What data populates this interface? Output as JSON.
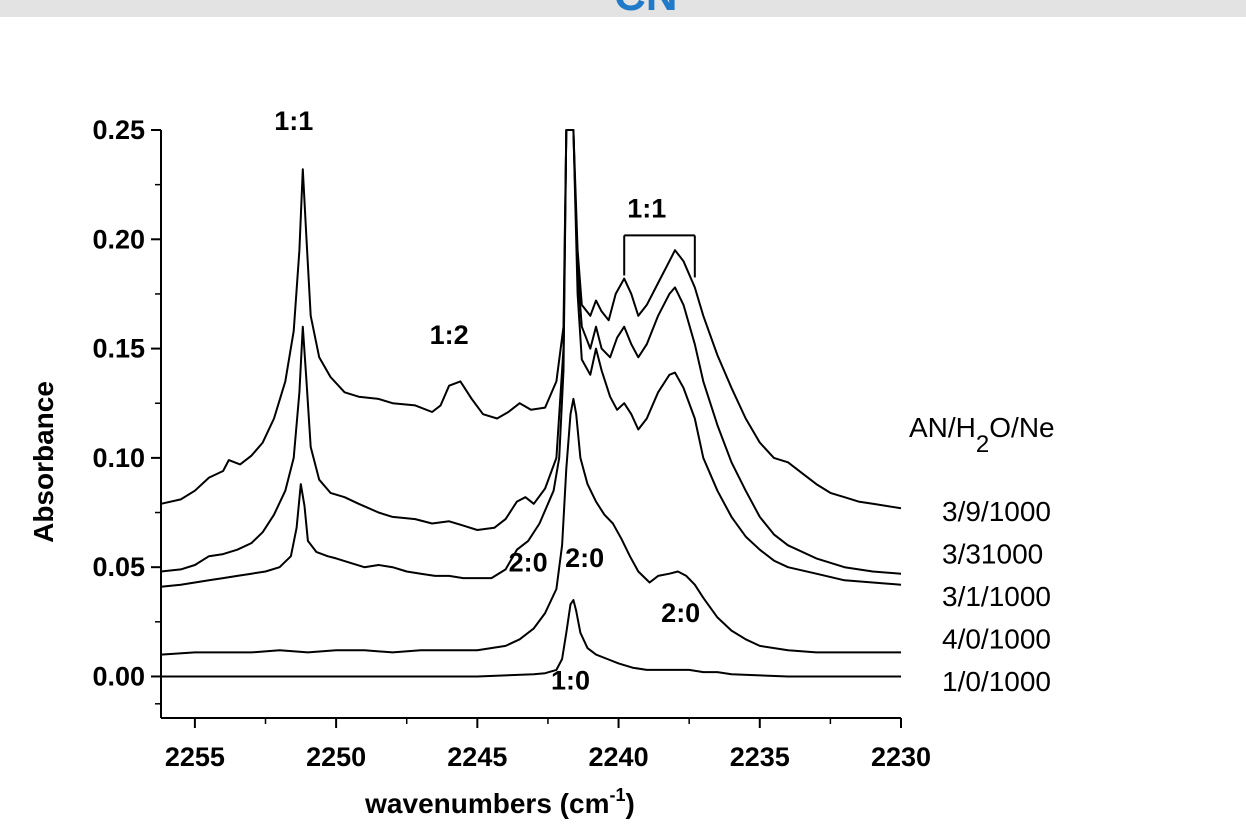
{
  "header": {
    "title_fragment": "CN",
    "band_color": "#e3e3e3",
    "title_color": "#1f7ac9"
  },
  "chart_data": {
    "type": "line",
    "title": "",
    "xlabel": "wavenumbers (cm",
    "xlabel_superscript": "-1",
    "xlabel_suffix": ")",
    "ylabel": "Absorbance",
    "xlim": [
      2256.2,
      2230
    ],
    "ylim": [
      -0.019,
      0.25
    ],
    "x_reversed": true,
    "grid": false,
    "line_color": "#000000",
    "xticks": [
      2255,
      2250,
      2245,
      2240,
      2235,
      2230
    ],
    "xtick_labels": [
      "2255",
      "2250",
      "2245",
      "2240",
      "2235",
      "2230"
    ],
    "yticks": [
      0.0,
      0.05,
      0.1,
      0.15,
      0.2,
      0.25
    ],
    "ytick_labels": [
      "0.00",
      "0.05",
      "0.10",
      "0.15",
      "0.20",
      "0.25"
    ],
    "legend": {
      "title_main": "AN/H",
      "title_sub": "2",
      "title_rest": "O/Ne",
      "position": "right",
      "entries": [
        "3/9/1000",
        "3/31000",
        "3/1/1000",
        "4/0/1000",
        "1/0/1000"
      ]
    },
    "annotations": [
      {
        "text": "1:1",
        "x": 2251.5,
        "y": 0.25
      },
      {
        "text": "1:2",
        "x": 2246.0,
        "y": 0.152
      },
      {
        "text": "1:1",
        "x": 2239.0,
        "y": 0.21,
        "bracket": [
          2239.8,
          2237.3
        ]
      },
      {
        "text": "2:0",
        "x": 2243.2,
        "y": 0.048
      },
      {
        "text": "2:0",
        "x": 2241.2,
        "y": 0.05
      },
      {
        "text": "2:0",
        "x": 2237.8,
        "y": 0.025
      },
      {
        "text": "1:0",
        "x": 2241.7,
        "y": -0.006
      }
    ],
    "series": [
      {
        "name": "3/9/1000",
        "points": [
          [
            2256.2,
            0.079
          ],
          [
            2255.5,
            0.081
          ],
          [
            2255,
            0.085
          ],
          [
            2254.5,
            0.091
          ],
          [
            2254,
            0.094
          ],
          [
            2253.8,
            0.099
          ],
          [
            2253.4,
            0.097
          ],
          [
            2253,
            0.101
          ],
          [
            2252.6,
            0.107
          ],
          [
            2252.2,
            0.118
          ],
          [
            2251.8,
            0.135
          ],
          [
            2251.5,
            0.158
          ],
          [
            2251.3,
            0.195
          ],
          [
            2251.18,
            0.232
          ],
          [
            2251.05,
            0.2
          ],
          [
            2250.9,
            0.165
          ],
          [
            2250.6,
            0.146
          ],
          [
            2250.2,
            0.137
          ],
          [
            2249.7,
            0.13
          ],
          [
            2249.2,
            0.128
          ],
          [
            2248.5,
            0.127
          ],
          [
            2248,
            0.125
          ],
          [
            2247.2,
            0.124
          ],
          [
            2246.6,
            0.121
          ],
          [
            2246.3,
            0.124
          ],
          [
            2246,
            0.133
          ],
          [
            2245.6,
            0.135
          ],
          [
            2245.2,
            0.127
          ],
          [
            2244.8,
            0.12
          ],
          [
            2244.3,
            0.118
          ],
          [
            2243.9,
            0.121
          ],
          [
            2243.5,
            0.125
          ],
          [
            2243.1,
            0.122
          ],
          [
            2242.6,
            0.123
          ],
          [
            2242.2,
            0.135
          ],
          [
            2241.95,
            0.16
          ],
          [
            2241.85,
            0.25
          ],
          [
            2241.6,
            0.25
          ],
          [
            2241.45,
            0.195
          ],
          [
            2241.3,
            0.17
          ],
          [
            2241,
            0.165
          ],
          [
            2240.8,
            0.172
          ],
          [
            2240.6,
            0.167
          ],
          [
            2240.35,
            0.163
          ],
          [
            2240.1,
            0.175
          ],
          [
            2239.8,
            0.182
          ],
          [
            2239.55,
            0.175
          ],
          [
            2239.3,
            0.165
          ],
          [
            2239,
            0.17
          ],
          [
            2238.6,
            0.18
          ],
          [
            2238.2,
            0.19
          ],
          [
            2238,
            0.195
          ],
          [
            2237.7,
            0.19
          ],
          [
            2237.3,
            0.178
          ],
          [
            2237,
            0.165
          ],
          [
            2236.5,
            0.147
          ],
          [
            2236,
            0.132
          ],
          [
            2235.5,
            0.118
          ],
          [
            2235,
            0.107
          ],
          [
            2234.5,
            0.1
          ],
          [
            2234,
            0.098
          ],
          [
            2233.5,
            0.093
          ],
          [
            2233,
            0.088
          ],
          [
            2232.5,
            0.084
          ],
          [
            2232,
            0.082
          ],
          [
            2231.5,
            0.08
          ],
          [
            2231,
            0.079
          ],
          [
            2230,
            0.077
          ]
        ]
      },
      {
        "name": "3/31000",
        "points": [
          [
            2256.2,
            0.048
          ],
          [
            2255.5,
            0.049
          ],
          [
            2255,
            0.051
          ],
          [
            2254.5,
            0.055
          ],
          [
            2254,
            0.056
          ],
          [
            2253.5,
            0.058
          ],
          [
            2253,
            0.061
          ],
          [
            2252.6,
            0.066
          ],
          [
            2252.2,
            0.074
          ],
          [
            2251.8,
            0.085
          ],
          [
            2251.5,
            0.1
          ],
          [
            2251.3,
            0.13
          ],
          [
            2251.18,
            0.16
          ],
          [
            2251.05,
            0.135
          ],
          [
            2250.9,
            0.105
          ],
          [
            2250.6,
            0.09
          ],
          [
            2250.2,
            0.084
          ],
          [
            2249.7,
            0.082
          ],
          [
            2249.2,
            0.079
          ],
          [
            2248.5,
            0.075
          ],
          [
            2248,
            0.073
          ],
          [
            2247.2,
            0.072
          ],
          [
            2246.6,
            0.07
          ],
          [
            2246,
            0.071
          ],
          [
            2245.5,
            0.069
          ],
          [
            2245,
            0.067
          ],
          [
            2244.4,
            0.068
          ],
          [
            2244,
            0.072
          ],
          [
            2243.6,
            0.08
          ],
          [
            2243.3,
            0.082
          ],
          [
            2243,
            0.079
          ],
          [
            2242.6,
            0.086
          ],
          [
            2242.2,
            0.1
          ],
          [
            2241.95,
            0.15
          ],
          [
            2241.85,
            0.25
          ],
          [
            2241.6,
            0.25
          ],
          [
            2241.45,
            0.185
          ],
          [
            2241.3,
            0.16
          ],
          [
            2241,
            0.15
          ],
          [
            2240.8,
            0.16
          ],
          [
            2240.6,
            0.15
          ],
          [
            2240.3,
            0.146
          ],
          [
            2240.05,
            0.155
          ],
          [
            2239.8,
            0.16
          ],
          [
            2239.55,
            0.152
          ],
          [
            2239.3,
            0.146
          ],
          [
            2239,
            0.152
          ],
          [
            2238.6,
            0.165
          ],
          [
            2238.2,
            0.175
          ],
          [
            2238,
            0.178
          ],
          [
            2237.7,
            0.17
          ],
          [
            2237.3,
            0.152
          ],
          [
            2237,
            0.135
          ],
          [
            2236.5,
            0.115
          ],
          [
            2236,
            0.098
          ],
          [
            2235.5,
            0.085
          ],
          [
            2235,
            0.073
          ],
          [
            2234.5,
            0.065
          ],
          [
            2234,
            0.06
          ],
          [
            2233,
            0.054
          ],
          [
            2232,
            0.05
          ],
          [
            2231,
            0.048
          ],
          [
            2230,
            0.047
          ]
        ]
      },
      {
        "name": "3/1/1000",
        "points": [
          [
            2256.2,
            0.041
          ],
          [
            2255.5,
            0.042
          ],
          [
            2255,
            0.043
          ],
          [
            2254.5,
            0.044
          ],
          [
            2254,
            0.045
          ],
          [
            2253.5,
            0.046
          ],
          [
            2253,
            0.047
          ],
          [
            2252.5,
            0.048
          ],
          [
            2252,
            0.05
          ],
          [
            2251.6,
            0.055
          ],
          [
            2251.4,
            0.068
          ],
          [
            2251.25,
            0.088
          ],
          [
            2251.12,
            0.078
          ],
          [
            2251,
            0.062
          ],
          [
            2250.7,
            0.057
          ],
          [
            2250.3,
            0.055
          ],
          [
            2250,
            0.054
          ],
          [
            2249.5,
            0.052
          ],
          [
            2249,
            0.05
          ],
          [
            2248.5,
            0.051
          ],
          [
            2248,
            0.05
          ],
          [
            2247.5,
            0.048
          ],
          [
            2247,
            0.047
          ],
          [
            2246.5,
            0.046
          ],
          [
            2246,
            0.046
          ],
          [
            2245.5,
            0.045
          ],
          [
            2245,
            0.045
          ],
          [
            2244.5,
            0.045
          ],
          [
            2244,
            0.049
          ],
          [
            2243.6,
            0.058
          ],
          [
            2243.2,
            0.062
          ],
          [
            2242.8,
            0.07
          ],
          [
            2242.3,
            0.085
          ],
          [
            2242.1,
            0.1
          ],
          [
            2241.95,
            0.14
          ],
          [
            2241.85,
            0.25
          ],
          [
            2241.6,
            0.25
          ],
          [
            2241.45,
            0.175
          ],
          [
            2241.3,
            0.145
          ],
          [
            2241,
            0.138
          ],
          [
            2240.8,
            0.15
          ],
          [
            2240.6,
            0.14
          ],
          [
            2240.3,
            0.128
          ],
          [
            2240.05,
            0.122
          ],
          [
            2239.8,
            0.125
          ],
          [
            2239.55,
            0.12
          ],
          [
            2239.3,
            0.113
          ],
          [
            2239,
            0.118
          ],
          [
            2238.6,
            0.13
          ],
          [
            2238.2,
            0.138
          ],
          [
            2238,
            0.139
          ],
          [
            2237.7,
            0.132
          ],
          [
            2237.3,
            0.118
          ],
          [
            2237,
            0.1
          ],
          [
            2236.5,
            0.085
          ],
          [
            2236,
            0.073
          ],
          [
            2235.5,
            0.064
          ],
          [
            2235,
            0.058
          ],
          [
            2234.5,
            0.053
          ],
          [
            2234,
            0.05
          ],
          [
            2233,
            0.047
          ],
          [
            2232,
            0.044
          ],
          [
            2231,
            0.043
          ],
          [
            2230,
            0.042
          ]
        ]
      },
      {
        "name": "4/0/1000",
        "points": [
          [
            2256.2,
            0.01
          ],
          [
            2255,
            0.011
          ],
          [
            2254,
            0.011
          ],
          [
            2253,
            0.011
          ],
          [
            2252,
            0.012
          ],
          [
            2251,
            0.011
          ],
          [
            2250,
            0.012
          ],
          [
            2249,
            0.012
          ],
          [
            2248,
            0.011
          ],
          [
            2247,
            0.012
          ],
          [
            2246,
            0.012
          ],
          [
            2245,
            0.012
          ],
          [
            2244,
            0.014
          ],
          [
            2243.5,
            0.017
          ],
          [
            2243,
            0.022
          ],
          [
            2242.6,
            0.029
          ],
          [
            2242.2,
            0.04
          ],
          [
            2242.0,
            0.06
          ],
          [
            2241.85,
            0.095
          ],
          [
            2241.7,
            0.12
          ],
          [
            2241.6,
            0.127
          ],
          [
            2241.5,
            0.12
          ],
          [
            2241.35,
            0.1
          ],
          [
            2241.1,
            0.088
          ],
          [
            2240.8,
            0.08
          ],
          [
            2240.5,
            0.074
          ],
          [
            2240.2,
            0.07
          ],
          [
            2239.9,
            0.063
          ],
          [
            2239.6,
            0.055
          ],
          [
            2239.3,
            0.048
          ],
          [
            2238.9,
            0.043
          ],
          [
            2238.6,
            0.046
          ],
          [
            2238.2,
            0.047
          ],
          [
            2237.9,
            0.048
          ],
          [
            2237.6,
            0.046
          ],
          [
            2237.3,
            0.042
          ],
          [
            2237,
            0.036
          ],
          [
            2236.5,
            0.027
          ],
          [
            2236,
            0.021
          ],
          [
            2235.5,
            0.017
          ],
          [
            2235,
            0.014
          ],
          [
            2234,
            0.012
          ],
          [
            2233,
            0.011
          ],
          [
            2232,
            0.011
          ],
          [
            2231,
            0.011
          ],
          [
            2230,
            0.011
          ]
        ]
      },
      {
        "name": "1/0/1000",
        "points": [
          [
            2256.2,
            0.0
          ],
          [
            2255,
            0.0
          ],
          [
            2254,
            0.0
          ],
          [
            2253,
            0.0
          ],
          [
            2252,
            0.0
          ],
          [
            2251,
            0.0
          ],
          [
            2250,
            0.0
          ],
          [
            2249,
            0.0
          ],
          [
            2248,
            0.0
          ],
          [
            2247,
            0.0
          ],
          [
            2246,
            0.0
          ],
          [
            2245,
            0.0
          ],
          [
            2244,
            0.0005
          ],
          [
            2243,
            0.001
          ],
          [
            2242.6,
            0.0015
          ],
          [
            2242.2,
            0.003
          ],
          [
            2242.0,
            0.008
          ],
          [
            2241.85,
            0.02
          ],
          [
            2241.7,
            0.033
          ],
          [
            2241.6,
            0.035
          ],
          [
            2241.5,
            0.03
          ],
          [
            2241.35,
            0.02
          ],
          [
            2241.1,
            0.013
          ],
          [
            2240.8,
            0.01
          ],
          [
            2240.4,
            0.008
          ],
          [
            2240,
            0.006
          ],
          [
            2239.5,
            0.004
          ],
          [
            2239,
            0.003
          ],
          [
            2238.5,
            0.003
          ],
          [
            2238,
            0.003
          ],
          [
            2237.5,
            0.003
          ],
          [
            2237,
            0.002
          ],
          [
            2236.5,
            0.002
          ],
          [
            2236,
            0.001
          ],
          [
            2235,
            0.0005
          ],
          [
            2234,
            0.0
          ],
          [
            2233,
            0.0
          ],
          [
            2232,
            0.0
          ],
          [
            2231,
            0.0
          ],
          [
            2230,
            0.0
          ]
        ]
      }
    ]
  }
}
